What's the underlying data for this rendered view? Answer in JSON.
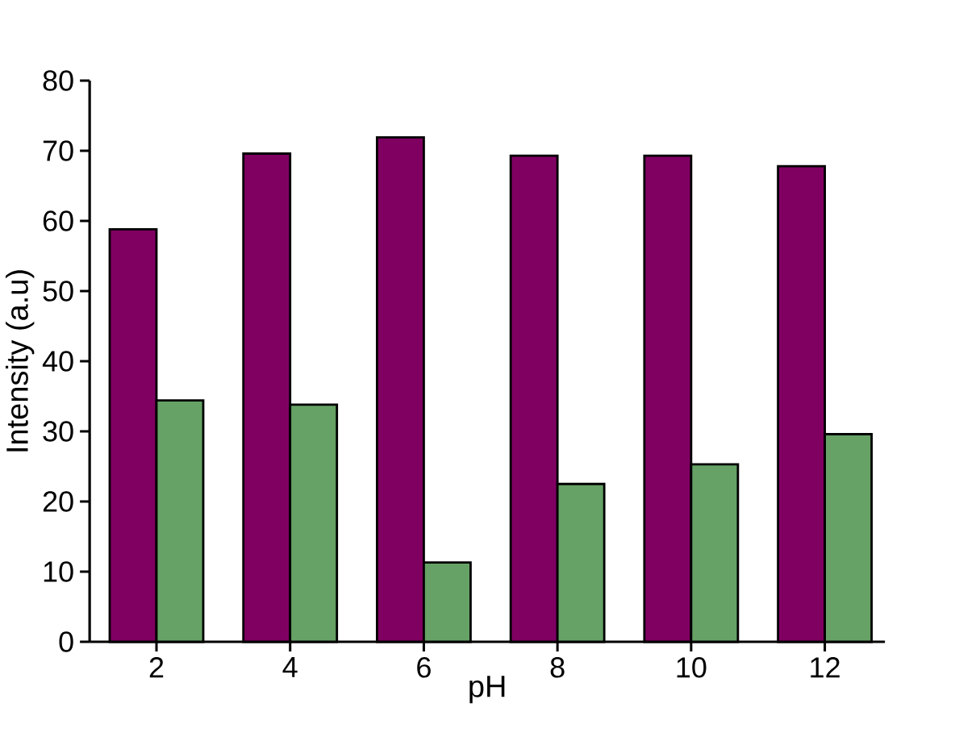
{
  "chart_data": {
    "type": "bar",
    "xlabel": "pH",
    "ylabel": "Intensity (a.u)",
    "categories": [
      "2",
      "4",
      "6",
      "8",
      "10",
      "12"
    ],
    "series": [
      {
        "color": "#800062",
        "values": [
          58.8,
          69.6,
          71.9,
          69.3,
          69.3,
          67.8
        ]
      },
      {
        "color": "#66a266",
        "values": [
          34.4,
          33.8,
          11.3,
          22.5,
          25.3,
          29.6
        ]
      }
    ],
    "ylim": [
      0,
      80
    ],
    "yticks": [
      0,
      10,
      20,
      30,
      40,
      50,
      60,
      70,
      80
    ]
  }
}
